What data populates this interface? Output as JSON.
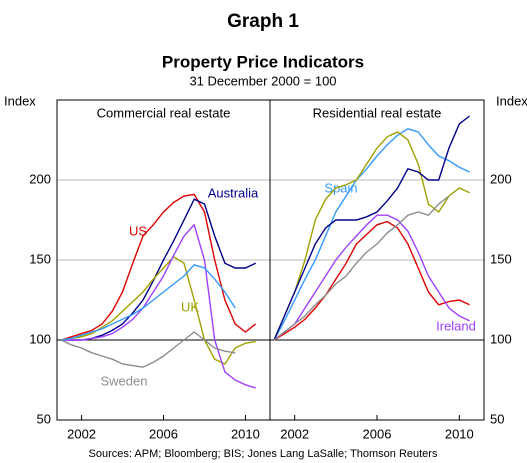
{
  "header": {
    "graph": "Graph 1",
    "title": "Property Price Indicators",
    "subtitle": "31 December 2000 = 100"
  },
  "source": "Sources: APM; Bloomberg; BIS; Jones Lang LaSalle; Thomson Reuters",
  "chart_data": [
    {
      "type": "line",
      "title": "Commercial real estate",
      "ylabel": "Index",
      "x": [
        2001,
        2001.5,
        2002,
        2002.5,
        2003,
        2003.5,
        2004,
        2004.5,
        2005,
        2005.5,
        2006,
        2006.5,
        2007,
        2007.5,
        2008,
        2008.5,
        2009,
        2009.5,
        2010,
        2010.5
      ],
      "xlim": [
        2000.8,
        2011.2
      ],
      "xticks": [
        2002,
        2006,
        2010
      ],
      "ylim": [
        50,
        250
      ],
      "yticks": [
        50,
        100,
        150,
        200
      ],
      "grid": true,
      "hline": 100,
      "series": [
        {
          "name": "US",
          "color": "#e00000",
          "values": [
            100,
            102,
            104,
            106,
            110,
            118,
            130,
            148,
            165,
            172,
            180,
            186,
            190,
            191,
            180,
            150,
            125,
            110,
            105,
            110
          ]
        },
        {
          "name": "Australia",
          "color": "#00008b",
          "values": [
            100,
            100,
            100,
            101,
            103,
            106,
            110,
            117,
            125,
            137,
            150,
            162,
            175,
            188,
            185,
            165,
            148,
            145,
            145,
            148
          ]
        },
        {
          "name": "UK",
          "color": "#a0a000",
          "values": [
            100,
            101,
            102,
            104,
            108,
            112,
            118,
            124,
            130,
            138,
            145,
            152,
            148,
            125,
            100,
            88,
            85,
            95,
            98,
            99
          ]
        },
        {
          "color": "#a040ff",
          "values": [
            100,
            100,
            100,
            101,
            102,
            104,
            108,
            113,
            120,
            130,
            140,
            153,
            165,
            172,
            150,
            100,
            80,
            75,
            72,
            70
          ]
        },
        {
          "color": "#3399ff",
          "values": [
            100,
            101,
            103,
            105,
            107,
            110,
            113,
            116,
            120,
            125,
            130,
            135,
            140,
            147,
            145,
            138,
            130,
            120,
            null,
            null
          ]
        },
        {
          "name": "Sweden",
          "color": "#8c8c8c",
          "values": [
            100,
            97,
            95,
            92,
            90,
            88,
            85,
            84,
            83,
            86,
            90,
            95,
            100,
            105,
            100,
            95,
            93,
            92,
            null,
            null
          ]
        }
      ]
    },
    {
      "type": "line",
      "title": "Residential real estate",
      "ylabel": "Index",
      "x": [
        2001,
        2001.5,
        2002,
        2002.5,
        2003,
        2003.5,
        2004,
        2004.5,
        2005,
        2005.5,
        2006,
        2006.5,
        2007,
        2007.5,
        2008,
        2008.5,
        2009,
        2009.5,
        2010,
        2010.5
      ],
      "xlim": [
        2000.8,
        2011.2
      ],
      "xticks": [
        2002,
        2006,
        2010
      ],
      "ylim": [
        50,
        250
      ],
      "yticks": [
        50,
        100,
        150,
        200
      ],
      "grid": true,
      "hline": 100,
      "series": [
        {
          "name": "Spain",
          "color": "#3399ff",
          "values": [
            100,
            112,
            125,
            138,
            150,
            165,
            180,
            190,
            200,
            207,
            215,
            222,
            228,
            232,
            230,
            222,
            215,
            212,
            208,
            205
          ]
        },
        {
          "color": "#a0a000",
          "values": [
            100,
            115,
            130,
            150,
            175,
            188,
            195,
            197,
            200,
            210,
            220,
            227,
            230,
            225,
            210,
            185,
            180,
            190,
            195,
            192
          ]
        },
        {
          "color": "#00008b",
          "values": [
            100,
            115,
            130,
            145,
            160,
            170,
            175,
            175,
            175,
            177,
            180,
            187,
            195,
            207,
            205,
            200,
            200,
            220,
            235,
            240
          ]
        },
        {
          "color": "#e00000",
          "values": [
            100,
            104,
            108,
            113,
            120,
            128,
            138,
            148,
            160,
            166,
            172,
            174,
            170,
            160,
            145,
            130,
            122,
            124,
            125,
            122
          ]
        },
        {
          "name": "Ireland",
          "color": "#a040ff",
          "values": [
            100,
            105,
            110,
            120,
            130,
            140,
            150,
            158,
            165,
            172,
            178,
            178,
            175,
            168,
            155,
            140,
            130,
            120,
            115,
            112
          ]
        },
        {
          "color": "#8c8c8c",
          "values": [
            100,
            105,
            110,
            115,
            122,
            128,
            135,
            140,
            148,
            155,
            160,
            167,
            172,
            178,
            180,
            178,
            185,
            190,
            null,
            null
          ]
        }
      ]
    }
  ]
}
